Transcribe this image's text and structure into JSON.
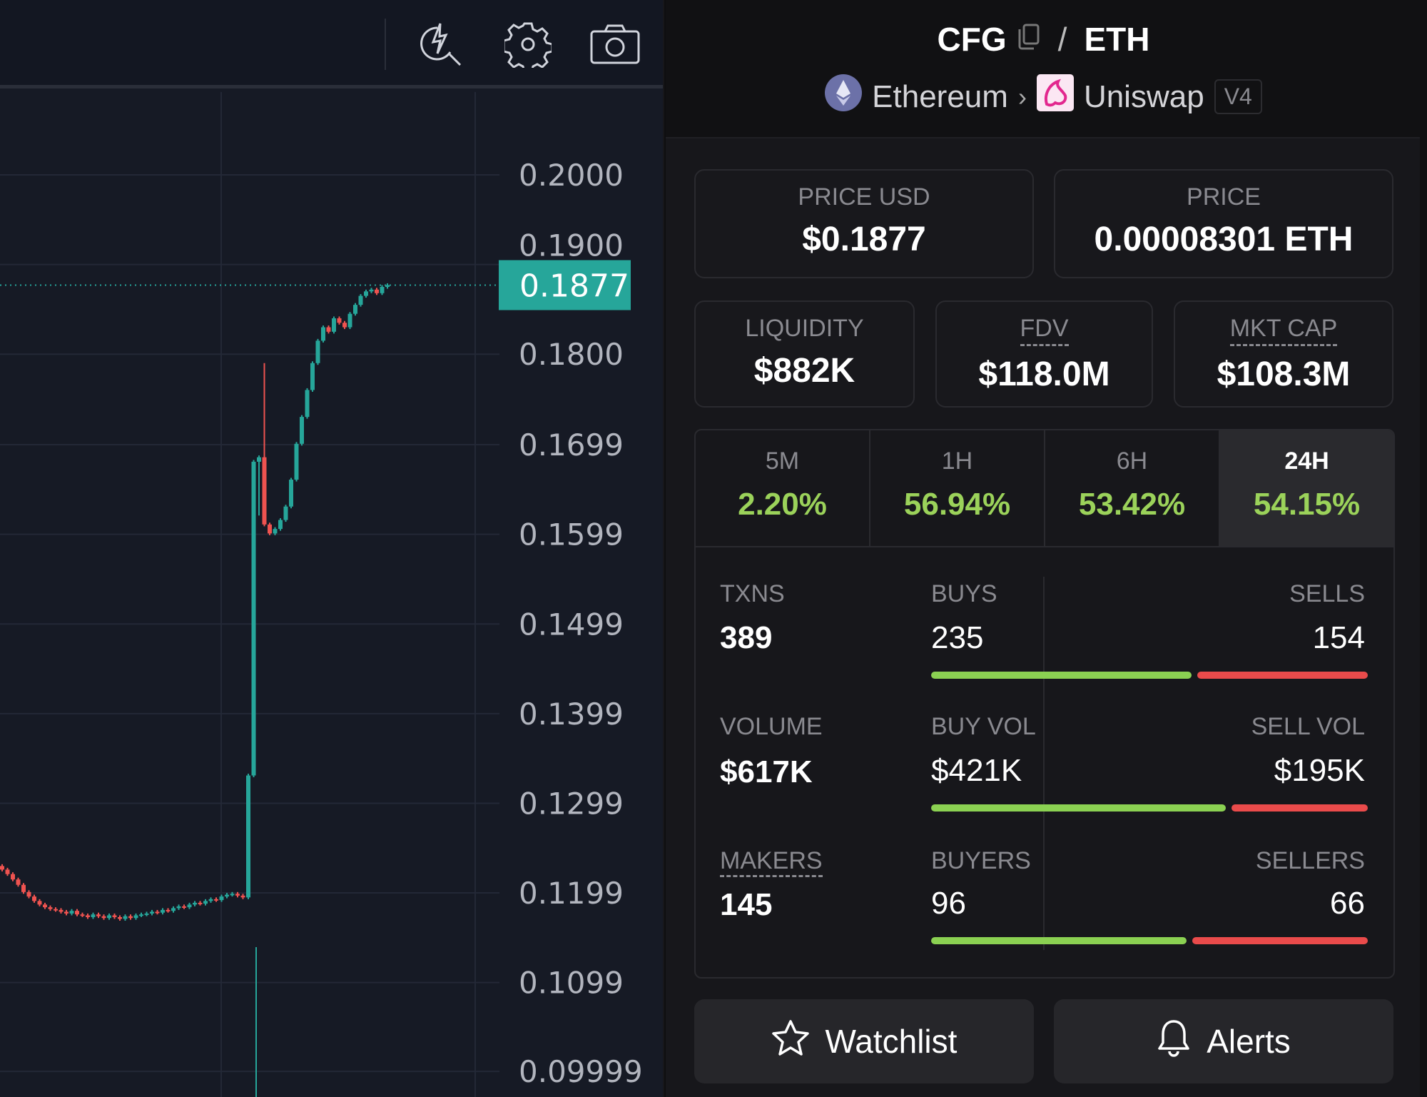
{
  "toolbar": {
    "icons": [
      "indicator-search-icon",
      "gear-icon",
      "camera-icon"
    ]
  },
  "header": {
    "base": "CFG",
    "quote": "ETH",
    "separator": "/",
    "chain": "Ethereum",
    "dex": "Uniswap",
    "version": "V4"
  },
  "prices": {
    "usd_label": "PRICE USD",
    "usd_value": "$0.1877",
    "native_label": "PRICE",
    "native_value": "0.00008301 ETH"
  },
  "metrics": [
    {
      "label": "LIQUIDITY",
      "value": "$882K"
    },
    {
      "label": "FDV",
      "value": "$118.0M"
    },
    {
      "label": "MKT CAP",
      "value": "$108.3M"
    }
  ],
  "timeframes": [
    {
      "label": "5M",
      "change": "2.20%"
    },
    {
      "label": "1H",
      "change": "56.94%"
    },
    {
      "label": "6H",
      "change": "53.42%"
    },
    {
      "label": "24H",
      "change": "54.15%",
      "active": true
    }
  ],
  "stats": {
    "txns_label": "TXNS",
    "txns": "389",
    "buys_label": "BUYS",
    "buys": "235",
    "sells_label": "SELLS",
    "sells": "154",
    "volume_label": "VOLUME",
    "volume": "$617K",
    "buy_vol_label": "BUY VOL",
    "buy_vol": "$421K",
    "sell_vol_label": "SELL VOL",
    "sell_vol": "$195K",
    "makers_label": "MAKERS",
    "makers": "145",
    "buyers_label": "BUYERS",
    "buyers": "96",
    "sellers_label": "SELLERS",
    "sellers": "66",
    "buy_ratio": 0.604,
    "buy_vol_ratio": 0.683,
    "buyers_ratio": 0.593
  },
  "buttons": {
    "watchlist": "Watchlist",
    "alerts": "Alerts"
  },
  "colors": {
    "up": "#26a69a",
    "down": "#ef5350",
    "green": "#8bd152",
    "red": "#ea4b4b"
  },
  "chart_data": {
    "type": "candlestick",
    "current_price": "0.1877",
    "y_ticks": [
      "0.2000",
      "0.1900",
      "0.1800",
      "0.1699",
      "0.1599",
      "0.1499",
      "0.1399",
      "0.1299",
      "0.1199",
      "0.1099",
      "0.09999"
    ],
    "ylim": [
      0.0975,
      0.2095
    ],
    "spike_high": 0.179,
    "closes": [
      0.1225,
      0.122,
      0.1214,
      0.1208,
      0.12,
      0.1195,
      0.119,
      0.1186,
      0.1183,
      0.1181,
      0.118,
      0.1178,
      0.1176,
      0.1179,
      0.1175,
      0.1174,
      0.1172,
      0.1175,
      0.1173,
      0.1171,
      0.1174,
      0.1172,
      0.117,
      0.1173,
      0.1171,
      0.1174,
      0.1175,
      0.1176,
      0.1178,
      0.1177,
      0.118,
      0.1179,
      0.1182,
      0.1184,
      0.1183,
      0.1186,
      0.1188,
      0.1187,
      0.119,
      0.1192,
      0.1191,
      0.1195,
      0.1197,
      0.1198,
      0.1196,
      0.1194,
      0.133,
      0.168,
      0.1685,
      0.161,
      0.16,
      0.1605,
      0.1615,
      0.163,
      0.166,
      0.17,
      0.173,
      0.176,
      0.179,
      0.1815,
      0.183,
      0.1825,
      0.184,
      0.1835,
      0.183,
      0.1845,
      0.1855,
      0.1865,
      0.187,
      0.1872,
      0.1868,
      0.1875,
      0.1877
    ]
  }
}
